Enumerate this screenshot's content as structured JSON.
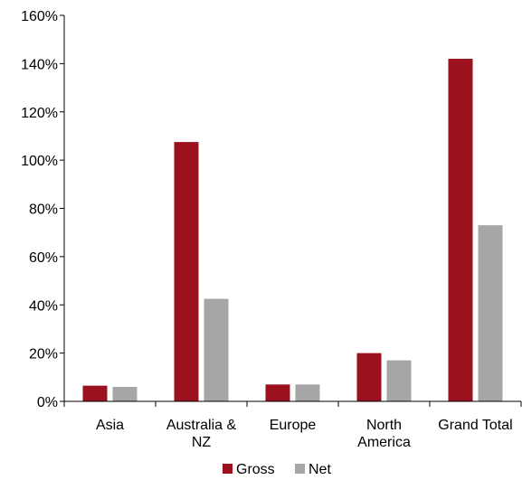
{
  "chart_data": {
    "type": "bar",
    "categories": [
      [
        "Asia"
      ],
      [
        "Australia &",
        "NZ"
      ],
      [
        "Europe"
      ],
      [
        "North",
        "America"
      ],
      [
        "Grand Total"
      ]
    ],
    "series": [
      {
        "name": "Gross",
        "color": "#9b111e",
        "values": [
          6.5,
          107.5,
          7.0,
          20.0,
          142.0
        ]
      },
      {
        "name": "Net",
        "color": "#a6a6a6",
        "values": [
          6.0,
          42.5,
          7.0,
          17.0,
          73.0
        ]
      }
    ],
    "yticks": [
      "0%",
      "20%",
      "40%",
      "60%",
      "80%",
      "100%",
      "120%",
      "140%",
      "160%"
    ],
    "ylim": [
      0,
      160
    ],
    "grid": false,
    "legend": "bottom-center",
    "title": "",
    "xlabel": "",
    "ylabel": ""
  }
}
